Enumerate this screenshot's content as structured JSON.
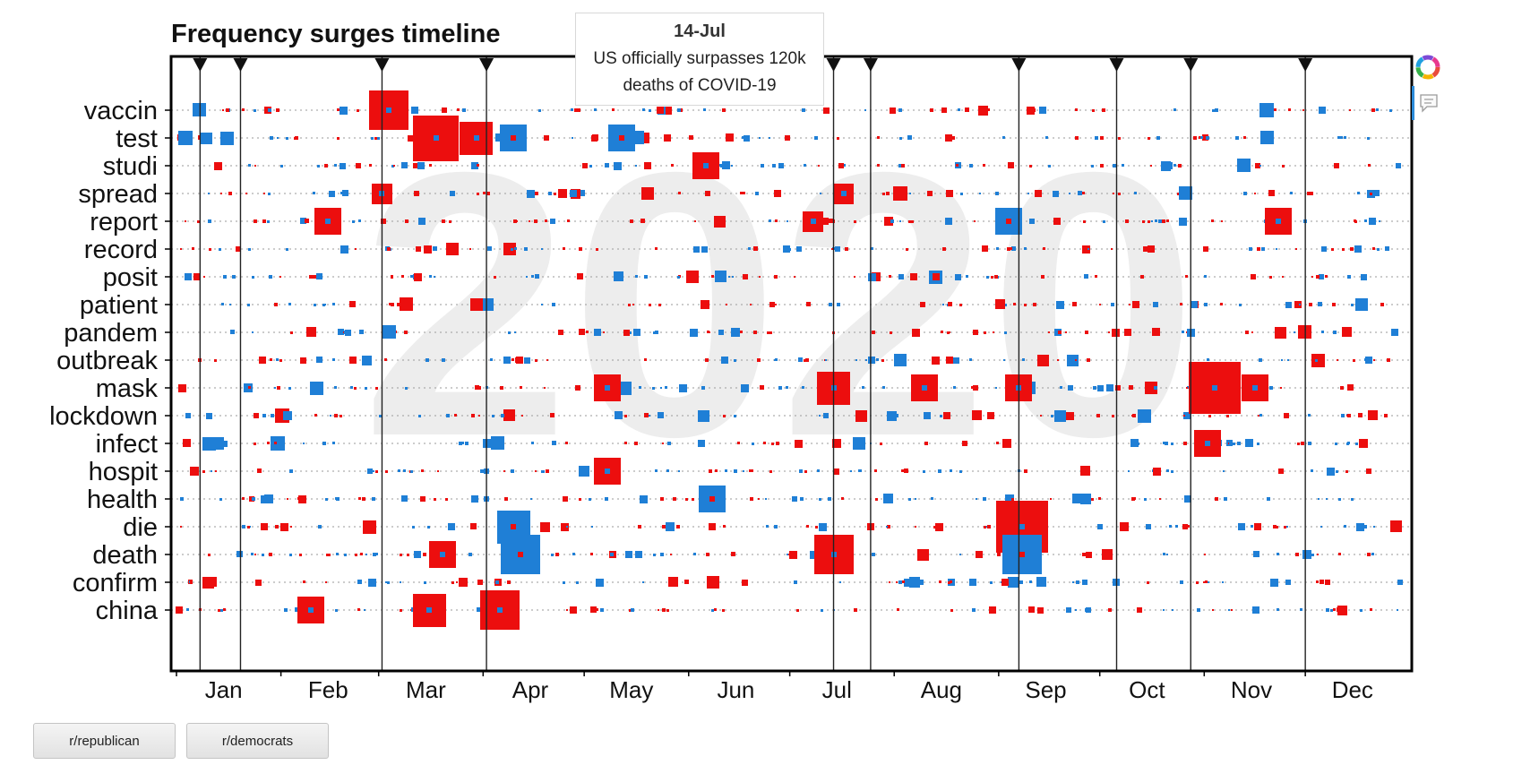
{
  "chart_data": {
    "type": "scatter",
    "title": "Frequency surges timeline",
    "year_watermark": "2020",
    "x_range": [
      "2020-01-01",
      "2020-12-31"
    ],
    "months": [
      "Jan",
      "Feb",
      "Mar",
      "Apr",
      "May",
      "Jun",
      "Jul",
      "Aug",
      "Sep",
      "Oct",
      "Nov",
      "Dec"
    ],
    "terms": [
      "vaccin",
      "test",
      "studi",
      "spread",
      "report",
      "record",
      "posit",
      "patient",
      "pandem",
      "outbreak",
      "mask",
      "lockdown",
      "infect",
      "hospit",
      "health",
      "die",
      "death",
      "confirm",
      "china"
    ],
    "colors": {
      "republican": "#ec0e0e",
      "democrats": "#1f7fd6"
    },
    "event_dates": [
      "2020-01-08",
      "2020-01-20",
      "2020-03-02",
      "2020-04-02",
      "2020-07-14",
      "2020-07-25",
      "2020-09-07",
      "2020-10-06",
      "2020-10-28",
      "2020-12-01"
    ],
    "tooltip": {
      "date": "14-Jul",
      "lines": [
        "US officially surpasses 120k",
        "deaths of COVID-19"
      ]
    },
    "major_surges": [
      {
        "term": "vaccin",
        "date": "2020-03-04",
        "series": "republican",
        "size": 5
      },
      {
        "term": "test",
        "date": "2020-03-18",
        "series": "republican",
        "size": 6
      },
      {
        "term": "test",
        "date": "2020-03-30",
        "series": "republican",
        "size": 4
      },
      {
        "term": "test",
        "date": "2020-04-10",
        "series": "democrats",
        "size": 3
      },
      {
        "term": "test",
        "date": "2020-05-12",
        "series": "democrats",
        "size": 3
      },
      {
        "term": "studi",
        "date": "2020-06-06",
        "series": "republican",
        "size": 3
      },
      {
        "term": "spread",
        "date": "2020-03-02",
        "series": "republican",
        "size": 2
      },
      {
        "term": "spread",
        "date": "2020-07-17",
        "series": "republican",
        "size": 2
      },
      {
        "term": "report",
        "date": "2020-02-15",
        "series": "republican",
        "size": 3
      },
      {
        "term": "report",
        "date": "2020-07-08",
        "series": "republican",
        "size": 2
      },
      {
        "term": "report",
        "date": "2020-09-04",
        "series": "democrats",
        "size": 3
      },
      {
        "term": "report",
        "date": "2020-11-23",
        "series": "republican",
        "size": 3
      },
      {
        "term": "mask",
        "date": "2020-05-08",
        "series": "republican",
        "size": 3
      },
      {
        "term": "mask",
        "date": "2020-07-14",
        "series": "republican",
        "size": 4
      },
      {
        "term": "mask",
        "date": "2020-08-10",
        "series": "republican",
        "size": 3
      },
      {
        "term": "mask",
        "date": "2020-09-07",
        "series": "republican",
        "size": 3
      },
      {
        "term": "mask",
        "date": "2020-11-04",
        "series": "republican",
        "size": 7
      },
      {
        "term": "mask",
        "date": "2020-11-16",
        "series": "republican",
        "size": 3
      },
      {
        "term": "infect",
        "date": "2020-11-02",
        "series": "republican",
        "size": 3
      },
      {
        "term": "hospit",
        "date": "2020-05-08",
        "series": "republican",
        "size": 3
      },
      {
        "term": "health",
        "date": "2020-06-08",
        "series": "democrats",
        "size": 3
      },
      {
        "term": "die",
        "date": "2020-04-10",
        "series": "democrats",
        "size": 4
      },
      {
        "term": "die",
        "date": "2020-09-08",
        "series": "republican",
        "size": 7
      },
      {
        "term": "death",
        "date": "2020-03-20",
        "series": "republican",
        "size": 3
      },
      {
        "term": "death",
        "date": "2020-04-12",
        "series": "democrats",
        "size": 5
      },
      {
        "term": "death",
        "date": "2020-07-14",
        "series": "republican",
        "size": 5
      },
      {
        "term": "death",
        "date": "2020-09-08",
        "series": "democrats",
        "size": 5
      },
      {
        "term": "china",
        "date": "2020-02-10",
        "series": "republican",
        "size": 3
      },
      {
        "term": "china",
        "date": "2020-03-16",
        "series": "republican",
        "size": 4
      },
      {
        "term": "china",
        "date": "2020-04-06",
        "series": "republican",
        "size": 5
      }
    ]
  },
  "buttons": {
    "republican": "r/republican",
    "democrats": "r/democrats"
  },
  "icons": {
    "logo": "color-wheel-icon",
    "comment": "comment-icon"
  }
}
